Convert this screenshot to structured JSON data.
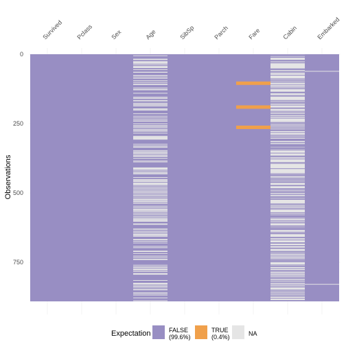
{
  "chart_data": {
    "type": "heatmap",
    "title": "",
    "xlabel": "",
    "ylabel": "Observations",
    "columns": [
      "Survived",
      "Pclass",
      "Sex",
      "Age",
      "SibSp",
      "Parch",
      "Fare",
      "Cabin",
      "Embarked"
    ],
    "n_rows": 891,
    "y_ticks": [
      0,
      250,
      500,
      750
    ],
    "y_tick_labels": [
      "0",
      "250",
      "500",
      "750"
    ],
    "legend": {
      "title": "Expectation",
      "placement": "bottom",
      "items": [
        {
          "key": "FALSE",
          "label": "FALSE",
          "sublabel": "(99.6%)",
          "color": "#988ec3"
        },
        {
          "key": "TRUE",
          "label": "TRUE",
          "sublabel": "(0.4%)",
          "color": "#f0a04b"
        },
        {
          "key": "NA",
          "label": "NA",
          "sublabel": "",
          "color": "#e5e5e5"
        }
      ]
    },
    "colors": {
      "FALSE": "#988ec3",
      "TRUE": "#f0a04b",
      "NA": "#e5e5e5",
      "grid": "#ebebeb"
    },
    "cells": {
      "Age": {
        "NA_rows": [
          5,
          17,
          19,
          26,
          28,
          29,
          31,
          32,
          36,
          42,
          45,
          46,
          47,
          48,
          55,
          64,
          65,
          76,
          77,
          82,
          87,
          95,
          101,
          107,
          109,
          121,
          126,
          128,
          140,
          154,
          158,
          159,
          166,
          168,
          176,
          180,
          181,
          185,
          186,
          196,
          198,
          201,
          214,
          223,
          229,
          235,
          240,
          241,
          250,
          256,
          260,
          264,
          270,
          274,
          277,
          284,
          295,
          298,
          300,
          301,
          303,
          304,
          306,
          324,
          330,
          334,
          335,
          347,
          351,
          354,
          358,
          359,
          364,
          367,
          368,
          375,
          384,
          388,
          409,
          410,
          411,
          413,
          415,
          420,
          425,
          428,
          431,
          444,
          451,
          454,
          457,
          459,
          464,
          466,
          468,
          470,
          475,
          481,
          485,
          490,
          495,
          497,
          502,
          507,
          511,
          517,
          522,
          524,
          527,
          531,
          533,
          538,
          547,
          552,
          557,
          560,
          563,
          564,
          568,
          573,
          578,
          584,
          589,
          593,
          596,
          598,
          601,
          602,
          611,
          612,
          613,
          629,
          633,
          639,
          643,
          648,
          650,
          653,
          656,
          667,
          669,
          674,
          680,
          692,
          697,
          709,
          711,
          718,
          727,
          732,
          738,
          739,
          740,
          760,
          766,
          768,
          773,
          776,
          778,
          783,
          790,
          792,
          793,
          815,
          825,
          826,
          828,
          832,
          837,
          839,
          846,
          849,
          859,
          863,
          868,
          878,
          888
        ]
      },
      "Fare": {
        "TRUE_rows": [
          104,
          190,
          263
        ]
      },
      "Cabin": {
        "FALSE_rows": [
          1,
          3,
          6,
          10,
          11,
          21,
          23,
          27,
          31,
          52,
          54,
          55,
          61,
          62,
          66,
          75,
          88,
          92,
          96,
          97,
          102,
          110,
          118,
          123,
          124,
          136,
          137,
          139,
          148,
          151,
          166,
          170,
          174,
          177,
          183,
          193,
          194,
          195,
          205,
          209,
          215,
          218,
          224,
          230,
          245,
          248,
          252,
          257,
          262,
          263,
          268,
          269,
          273,
          275,
          282,
          291,
          292,
          297,
          299,
          305,
          306,
          307,
          309,
          310,
          311,
          318,
          319,
          325,
          327,
          329,
          331,
          332,
          336,
          337,
          339,
          341,
          345,
          356,
          366,
          369,
          370,
          377,
          390,
          393,
          412,
          430,
          434,
          435,
          438,
          445,
          449,
          452,
          456,
          460,
          462,
          472,
          474,
          484,
          486,
          487,
          492,
          496,
          498,
          504,
          505,
          512,
          515,
          516,
          520,
          523,
          539,
          540,
          544,
          550,
          556,
          558,
          571,
          572,
          577,
          581,
          583,
          585,
          587,
          591,
          599,
          604,
          608,
          618,
          621,
          625,
          626,
          627,
          630,
          632,
          641,
          645,
          647,
          659,
          662,
          669,
          679,
          681,
          689,
          690,
          698,
          700,
          710,
          712,
          716,
          717,
          724,
          730,
          737,
          741,
          742,
          745,
          748,
          759,
          763,
          765,
          772,
          779,
          781,
          782,
          789,
          796,
          802,
          806,
          809,
          815,
          820,
          823,
          829,
          835,
          839,
          849,
          853,
          857,
          862,
          867,
          871,
          872,
          879,
          887,
          889
        ]
      },
      "Embarked": {
        "NA_rows": [
          61,
          829
        ]
      }
    }
  }
}
